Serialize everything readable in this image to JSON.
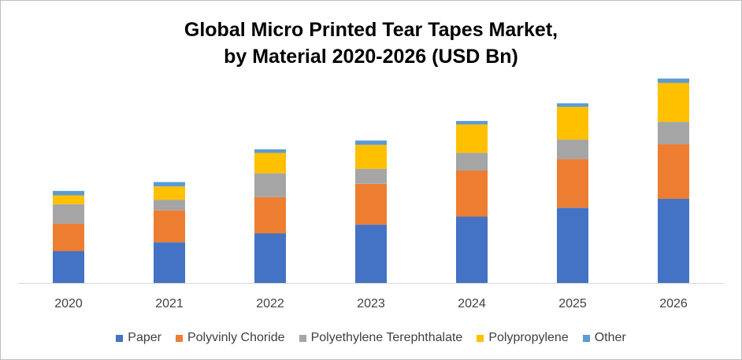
{
  "chart_data": {
    "type": "bar",
    "stacked": true,
    "title_line1": "Global Micro Printed Tear Tapes Market,",
    "title_line2": "by Material 2020-2026 (USD Bn)",
    "xlabel": "",
    "ylabel": "",
    "categories": [
      "2020",
      "2021",
      "2022",
      "2023",
      "2024",
      "2025",
      "2026"
    ],
    "series": [
      {
        "name": "Paper",
        "color": "#4472C4",
        "values": [
          36,
          46,
          56,
          66,
          75,
          85,
          95
        ]
      },
      {
        "name": "Polyvinly Choride",
        "color": "#ED7D31",
        "values": [
          31,
          36,
          41,
          46,
          52,
          55,
          62
        ]
      },
      {
        "name": "Polyethylene Terephthalate",
        "color": "#A5A5A5",
        "values": [
          22,
          12,
          27,
          17,
          20,
          22,
          25
        ]
      },
      {
        "name": "Polypropylene",
        "color": "#FFC000",
        "values": [
          10,
          15,
          23,
          27,
          32,
          37,
          44
        ]
      },
      {
        "name": "Other",
        "color": "#5B9BD5",
        "values": [
          5,
          5,
          4,
          5,
          4,
          4,
          5
        ]
      }
    ],
    "ylim": [
      0,
      230
    ],
    "grid": false,
    "legend_position": "bottom"
  }
}
